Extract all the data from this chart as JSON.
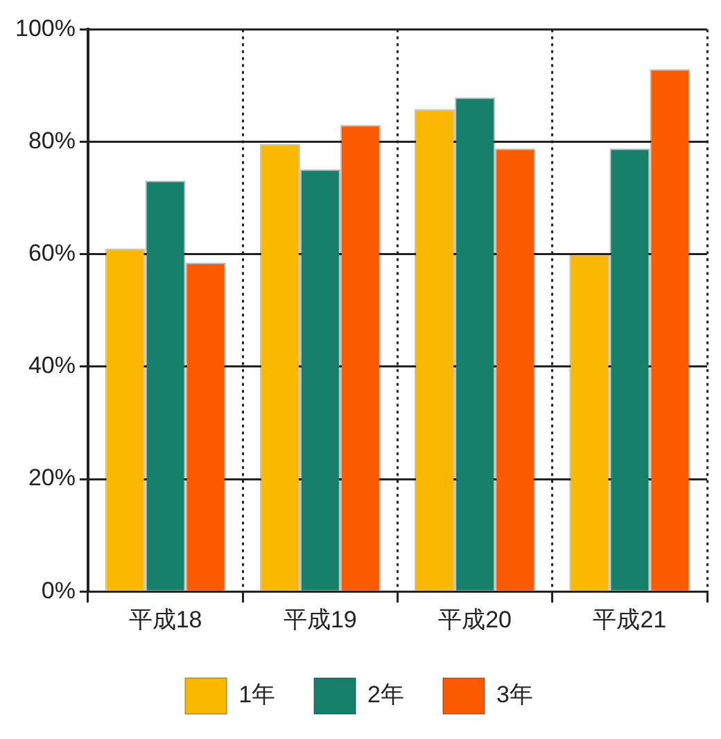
{
  "chart_data": {
    "type": "bar",
    "categories": [
      "平成18",
      "平成19",
      "平成20",
      "平成21"
    ],
    "series": [
      {
        "name": "1年",
        "color": "#fbb800",
        "values": [
          61,
          79.6,
          85.8,
          60
        ]
      },
      {
        "name": "2年",
        "color": "#17806a",
        "values": [
          73.1,
          75.1,
          87.9,
          78.8
        ]
      },
      {
        "name": "3年",
        "color": "#fb5a00",
        "values": [
          58.5,
          83,
          78.8,
          92.9
        ]
      }
    ],
    "ylim": [
      0,
      100
    ],
    "yticks": [
      {
        "value": 0,
        "label": "0%"
      },
      {
        "value": 20,
        "label": "20%"
      },
      {
        "value": 40,
        "label": "40%"
      },
      {
        "value": 60,
        "label": "60%"
      },
      {
        "value": 80,
        "label": "80%"
      },
      {
        "value": 100,
        "label": "100%"
      }
    ],
    "grid": true,
    "legend": "bottom"
  }
}
